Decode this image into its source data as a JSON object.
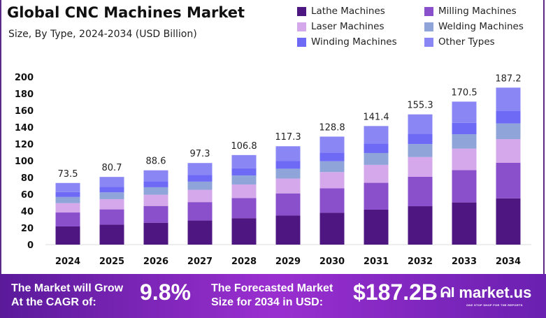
{
  "chart_data": {
    "type": "bar",
    "stacked": true,
    "title": "Global CNC Machines Market",
    "subtitle": "Size, By Type, 2024-2034 (USD Billion)",
    "categories": [
      "2024",
      "2025",
      "2026",
      "2027",
      "2028",
      "2029",
      "2030",
      "2031",
      "2032",
      "2033",
      "2034"
    ],
    "totals": [
      73.5,
      80.7,
      88.6,
      97.3,
      106.8,
      117.3,
      128.8,
      141.4,
      155.3,
      170.5,
      187.2
    ],
    "ylim": [
      0,
      200
    ],
    "yticks": [
      0,
      20,
      40,
      60,
      80,
      100,
      120,
      140,
      160,
      180,
      200
    ],
    "grid": false,
    "legend_position": "top-right",
    "series": [
      {
        "name": "Lathe Machines",
        "color": "#4e1680",
        "values": [
          21.7,
          23.8,
          26.1,
          28.7,
          31.5,
          34.6,
          38.0,
          41.7,
          45.8,
          50.3,
          55.2
        ]
      },
      {
        "name": "Milling Machines",
        "color": "#8a4fcb",
        "values": [
          16.6,
          18.2,
          20.0,
          22.0,
          24.1,
          26.5,
          29.1,
          32.0,
          35.1,
          38.5,
          42.3
        ]
      },
      {
        "name": "Laser Machines",
        "color": "#d5a8ec",
        "values": [
          11.1,
          12.2,
          13.4,
          14.7,
          16.1,
          17.7,
          19.4,
          21.4,
          23.5,
          25.7,
          28.3
        ]
      },
      {
        "name": "Welding Machines",
        "color": "#8fa5da",
        "values": [
          7.4,
          8.1,
          8.9,
          9.7,
          10.7,
          11.7,
          12.9,
          14.1,
          15.5,
          17.1,
          18.7
        ]
      },
      {
        "name": "Winding Machines",
        "color": "#6e6af5",
        "values": [
          5.9,
          6.5,
          7.1,
          7.8,
          8.5,
          9.4,
          10.3,
          11.3,
          12.4,
          13.6,
          15.0
        ]
      },
      {
        "name": "Other Types",
        "color": "#8a87f5",
        "values": [
          10.8,
          11.9,
          13.1,
          14.4,
          15.9,
          17.4,
          19.1,
          20.9,
          23.0,
          25.3,
          27.7
        ]
      }
    ]
  },
  "banner": {
    "cagr_label": "The Market will Grow At the CAGR of:",
    "cagr_value": "9.8%",
    "forecast_label": "The Forecasted Market Size for 2034 in USD:",
    "forecast_value": "$187.2B",
    "logo_text": "market.us",
    "logo_tagline": "ONE STOP SHOP FOR THE REPORTS"
  }
}
